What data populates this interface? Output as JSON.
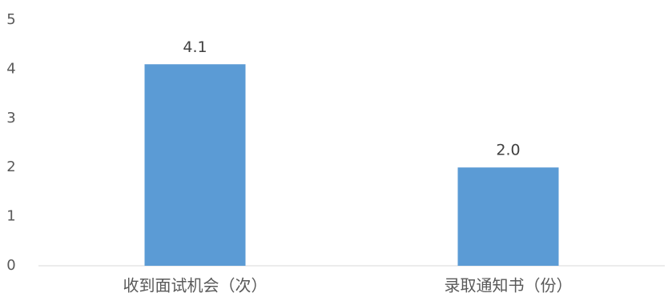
{
  "chart_data": {
    "type": "bar",
    "categories": [
      "收到面试机会（次）",
      "录取通知书（份）"
    ],
    "values": [
      4.1,
      2.0
    ],
    "data_labels": [
      "4.1",
      "2.0"
    ],
    "ylim": [
      0,
      5
    ],
    "yticks": [
      "0",
      "1",
      "2",
      "3",
      "4",
      "5"
    ],
    "title": "",
    "xlabel": "",
    "ylabel": "",
    "grid": false,
    "legend": "none",
    "bar_color": "#5B9BD5",
    "axis_color": "#D9D9D9"
  }
}
